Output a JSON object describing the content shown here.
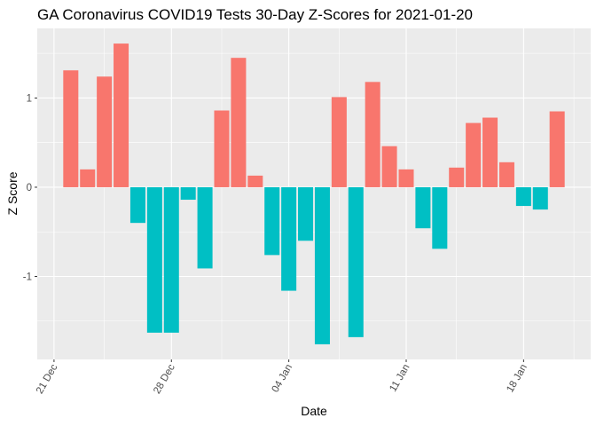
{
  "chart_data": {
    "type": "bar",
    "title": "GA Coronavirus COVID19 Tests 30-Day Z-Scores for 2021-01-20",
    "xlabel": "Date",
    "ylabel": "Z Score",
    "x_dates": [
      "2020-12-22",
      "2020-12-23",
      "2020-12-24",
      "2020-12-25",
      "2020-12-26",
      "2020-12-27",
      "2020-12-28",
      "2020-12-29",
      "2020-12-30",
      "2020-12-31",
      "2021-01-01",
      "2021-01-02",
      "2021-01-03",
      "2021-01-04",
      "2021-01-05",
      "2021-01-06",
      "2021-01-07",
      "2021-01-08",
      "2021-01-09",
      "2021-01-10",
      "2021-01-11",
      "2021-01-12",
      "2021-01-13",
      "2021-01-14",
      "2021-01-15",
      "2021-01-16",
      "2021-01-17",
      "2021-01-18",
      "2021-01-19",
      "2021-01-20"
    ],
    "values": [
      1.31,
      0.2,
      1.24,
      1.61,
      -0.4,
      -1.63,
      -1.63,
      -0.14,
      -0.91,
      0.86,
      1.45,
      0.13,
      -0.76,
      -1.16,
      -0.6,
      -1.76,
      1.01,
      -1.68,
      1.18,
      0.46,
      0.2,
      -0.46,
      -0.69,
      0.22,
      0.72,
      0.78,
      0.28,
      -0.21,
      -0.25,
      0.85
    ],
    "x_ticks": [
      {
        "date": "2020-12-21",
        "label": "21 Dec"
      },
      {
        "date": "2020-12-28",
        "label": "28 Dec"
      },
      {
        "date": "2021-01-04",
        "label": "04 Jan"
      },
      {
        "date": "2021-01-11",
        "label": "11 Jan"
      },
      {
        "date": "2021-01-18",
        "label": "18 Jan"
      }
    ],
    "x_range": [
      "2020-12-20",
      "2021-01-22"
    ],
    "y_ticks": [
      {
        "value": -1,
        "label": "-1"
      },
      {
        "value": 0,
        "label": "0"
      },
      {
        "value": 1,
        "label": "1"
      }
    ],
    "ylim": [
      -1.93,
      1.78
    ],
    "colors": {
      "positive": "#F8766D",
      "negative": "#00BFC4",
      "panel": "#EBEBEB",
      "grid": "#FFFFFF"
    },
    "grid": true,
    "legend": "none"
  }
}
